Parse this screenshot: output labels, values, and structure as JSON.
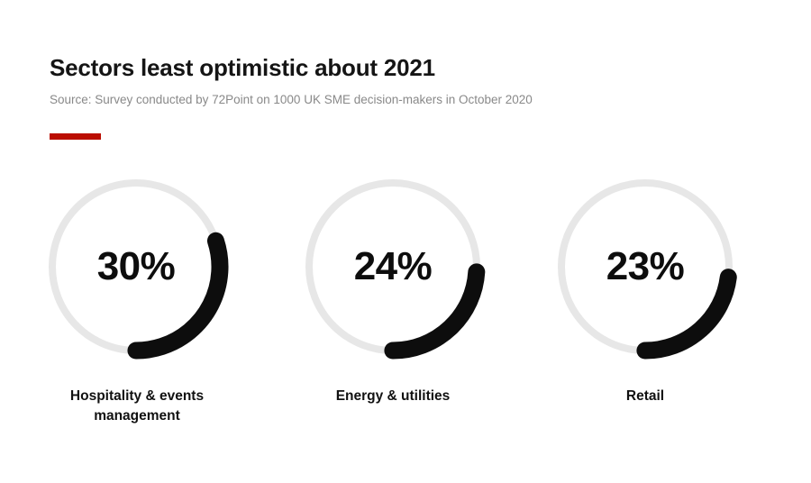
{
  "page": {
    "title": "Sectors least optimistic about 2021",
    "source_note": "Source: Survey conducted by 72Point on 1000 UK SME decision-makers in October 2020"
  },
  "accent": {
    "bar_color": "#bb0e00"
  },
  "chart_data": {
    "type": "donut",
    "title": "Sectors least optimistic about 2021",
    "source": "Source: Survey conducted by 72Point on 1000 UK SME decision-makers in October 2020",
    "unit": "%",
    "categories": [
      "Hospitality & events management",
      "Energy & utilities",
      "Retail"
    ],
    "values": [
      30,
      24,
      23
    ],
    "items": [
      {
        "label": "Hospitality & events management",
        "value": 30,
        "display": "30%"
      },
      {
        "label": "Energy & utilities",
        "value": 24,
        "display": "24%"
      },
      {
        "label": "Retail",
        "value": 23,
        "display": "23%"
      }
    ],
    "ring_color": "#e7e7e7",
    "arc_color": "#0d0d0d",
    "arc_anchor": "arc ends at bottom (6 o'clock), sweeps counterclockwise by value",
    "value_label_position": "center",
    "category_label_position": "below"
  }
}
